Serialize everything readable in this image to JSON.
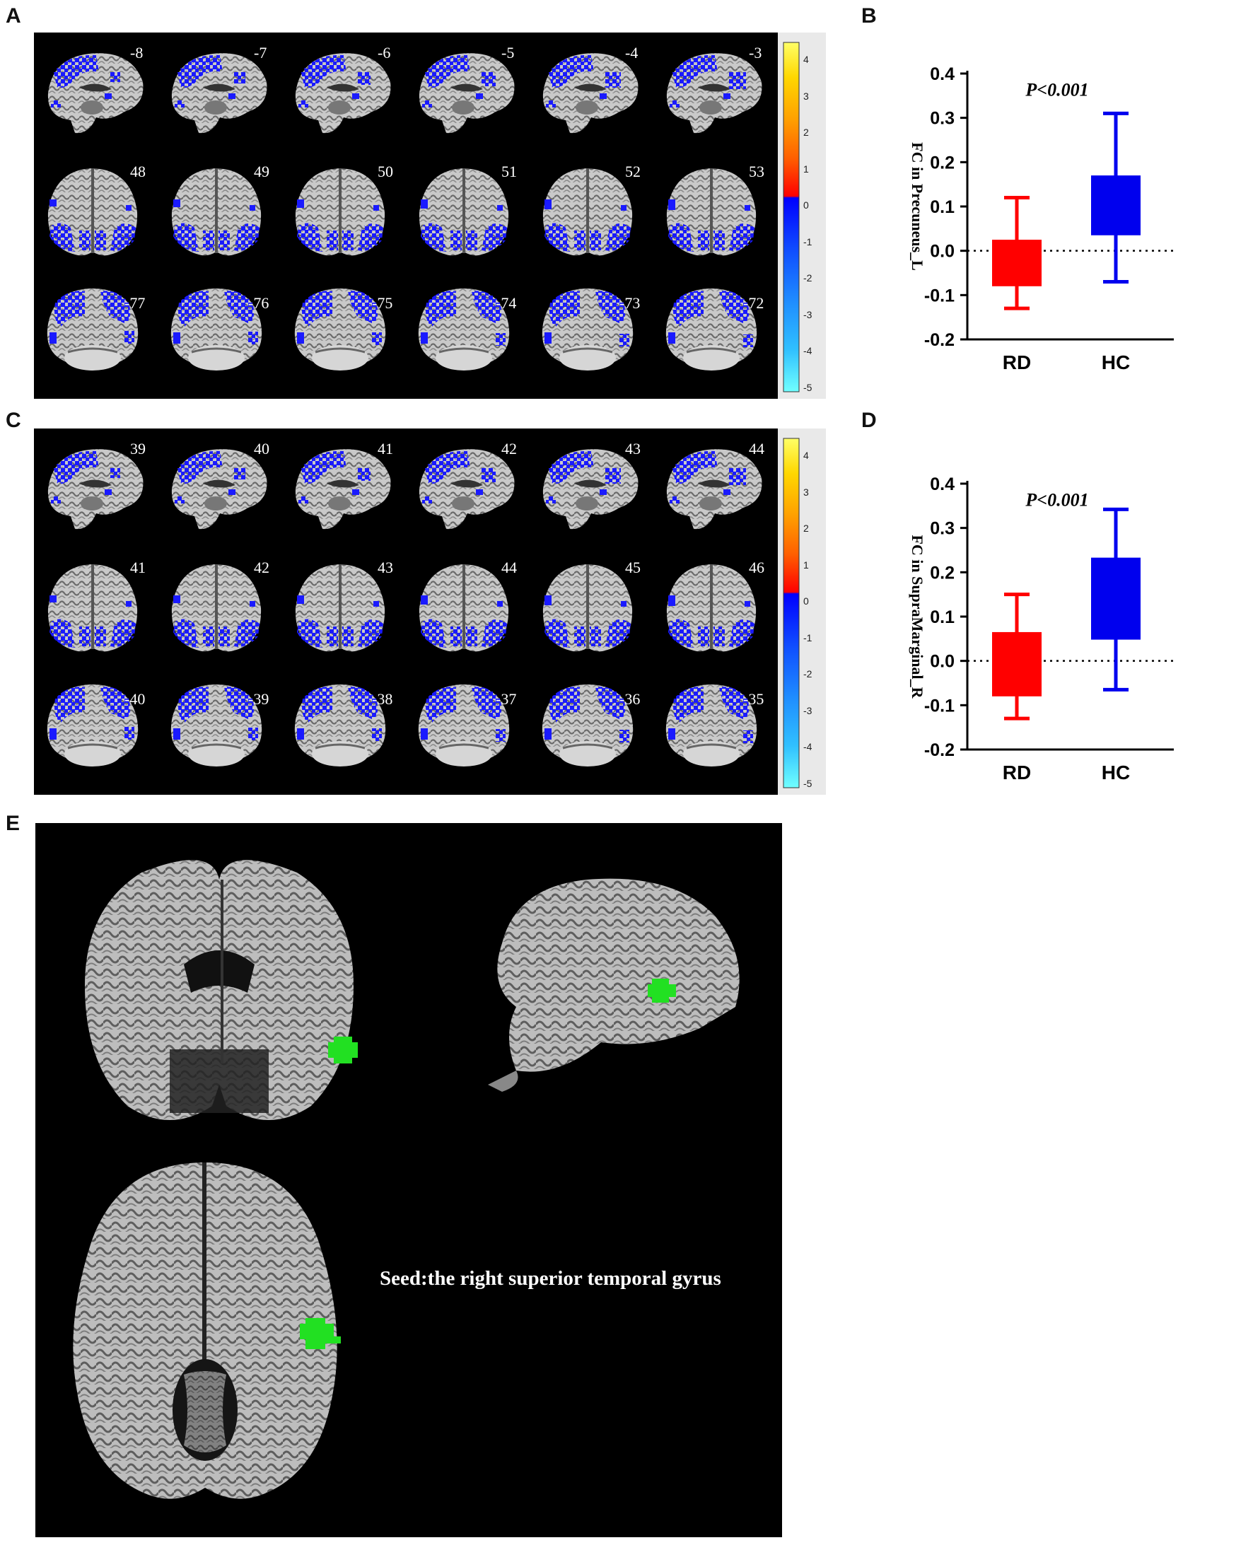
{
  "figure": {
    "panels": [
      "A",
      "B",
      "C",
      "D",
      "E"
    ]
  },
  "panel_a": {
    "rows": [
      {
        "view": "sagittal",
        "labels": [
          "-8",
          "-7",
          "-6",
          "-5",
          "-4",
          "-3"
        ]
      },
      {
        "view": "axial",
        "labels": [
          "48",
          "49",
          "50",
          "51",
          "52",
          "53"
        ]
      },
      {
        "view": "coronal",
        "labels": [
          "-77",
          "-76",
          "-75",
          "-74",
          "-73",
          "-72"
        ]
      }
    ],
    "colorbar_ticks": [
      "4",
      "3",
      "2",
      "1",
      "0",
      "-1",
      "-2",
      "-3",
      "-4",
      "-5"
    ]
  },
  "panel_c": {
    "rows": [
      {
        "view": "sagittal",
        "labels": [
          "39",
          "40",
          "41",
          "42",
          "43",
          "44"
        ]
      },
      {
        "view": "axial",
        "labels": [
          "41",
          "42",
          "43",
          "44",
          "45",
          "46"
        ]
      },
      {
        "view": "coronal",
        "labels": [
          "-40",
          "-39",
          "-38",
          "-37",
          "-36",
          "-35"
        ]
      }
    ],
    "colorbar_ticks": [
      "4",
      "3",
      "2",
      "1",
      "0",
      "-1",
      "-2",
      "-3",
      "-4",
      "-5"
    ]
  },
  "panel_e": {
    "caption": "Seed:the right superior temporal gyrus"
  },
  "colors": {
    "rd": "#ff0000",
    "hc": "#0000ee",
    "fc_blue": "#1a1aff",
    "seed_green": "#22e022",
    "background": "#000000"
  },
  "chart_data": [
    {
      "type": "box",
      "panel": "B",
      "categories": [
        "RD",
        "HC"
      ],
      "series": [
        {
          "name": "RD",
          "whisker_low": -0.13,
          "q1": -0.08,
          "q3": 0.025,
          "whisker_high": 0.12
        },
        {
          "name": "HC",
          "whisker_low": -0.07,
          "q1": 0.035,
          "q3": 0.17,
          "whisker_high": 0.31
        }
      ],
      "ylabel": "FC in Precuneus_L",
      "annotation": "P<0.001",
      "ylim": [
        -0.2,
        0.4
      ],
      "yticks": [
        "0.4",
        "0.3",
        "0.2",
        "0.1",
        "0.0",
        "-0.1",
        "-0.2"
      ],
      "reference_line": 0.0
    },
    {
      "type": "box",
      "panel": "D",
      "categories": [
        "RD",
        "HC"
      ],
      "series": [
        {
          "name": "RD",
          "whisker_low": -0.13,
          "q1": -0.08,
          "q3": 0.065,
          "whisker_high": 0.15
        },
        {
          "name": "HC",
          "whisker_low": -0.065,
          "q1": 0.048,
          "q3": 0.233,
          "whisker_high": 0.342
        }
      ],
      "ylabel": "FC in SupraMarginal_R",
      "annotation": "P<0.001",
      "ylim": [
        -0.2,
        0.4
      ],
      "yticks": [
        "0.4",
        "0.3",
        "0.2",
        "0.1",
        "0.0",
        "-0.1",
        "-0.2"
      ],
      "reference_line": 0.0
    }
  ]
}
